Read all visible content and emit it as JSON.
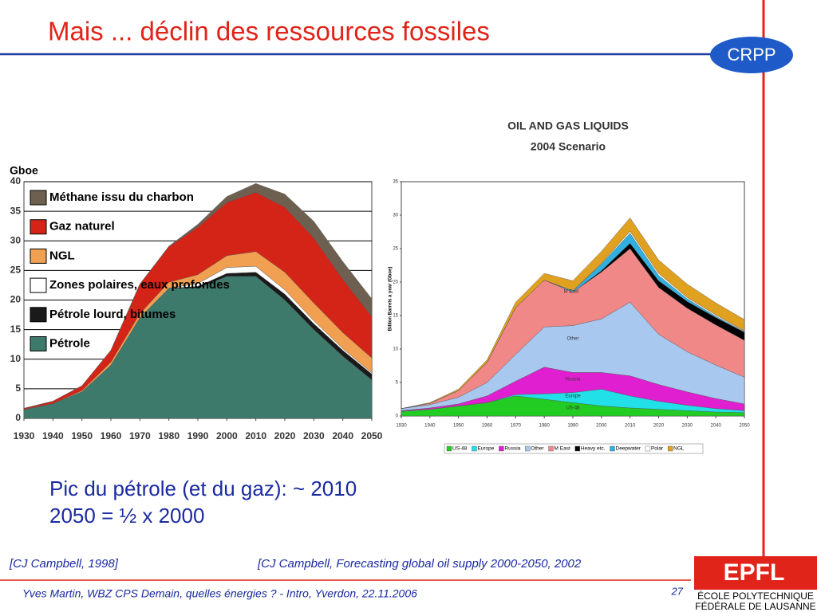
{
  "title": "Mais ... déclin des ressources fossiles",
  "logo_top": "CRPP",
  "body": [
    "Pic du pétrole (et du gaz): ~ 2010",
    "2050 = ½ x 2000"
  ],
  "citations": [
    "[CJ Campbell, 1998]",
    "[CJ Campbell, Forecasting global oil supply 2000-2050, 2002"
  ],
  "footer": "Yves Martin, WBZ CPS Demain, quelles énergies ? - Intro, Yverdon, 22.11.2006",
  "page_number": "27",
  "logo_bottom": {
    "mark": "EPFL",
    "lines": [
      "ÉCOLE POLYTECHNIQUE",
      "FÉDÉRALE DE LAUSANNE"
    ]
  },
  "chart_data": [
    {
      "type": "stacked_area",
      "y_label": "Gboe",
      "x": [
        1930,
        1940,
        1950,
        1960,
        1970,
        1980,
        1990,
        2000,
        2010,
        2020,
        2030,
        2040,
        2050
      ],
      "series": [
        {
          "name": "Pétrole",
          "color": "#3d7a6c",
          "values": [
            1.5,
            2.5,
            4.5,
            9,
            17,
            22,
            22,
            24,
            24,
            20,
            15,
            10.5,
            6.5
          ]
        },
        {
          "name": "Pétrole lourd, bitumes",
          "color": "#1a1a1a",
          "values": [
            0,
            0,
            0,
            0,
            0,
            0,
            0.3,
            0.5,
            0.7,
            1,
            1,
            1,
            1
          ]
        },
        {
          "name": "Zones polaires, eaux profondes",
          "color": "#ffffff",
          "values": [
            0,
            0,
            0,
            0,
            0,
            0,
            0.5,
            1,
            1,
            0.7,
            0.5,
            0.3,
            0.2
          ]
        },
        {
          "name": "NGL",
          "color": "#f0a050",
          "values": [
            0,
            0,
            0.2,
            0.5,
            0.7,
            1,
            1.5,
            2,
            2.5,
            3,
            3,
            2.7,
            2.5
          ]
        },
        {
          "name": "Gaz naturel",
          "color": "#d42418",
          "values": [
            0.2,
            0.4,
            0.8,
            2,
            5,
            6,
            8,
            9,
            10,
            11,
            11,
            9,
            7
          ]
        },
        {
          "name": "Méthane issu du charbon",
          "color": "#6e6050",
          "values": [
            0,
            0,
            0,
            0,
            0,
            0.1,
            0.5,
            1,
            1.5,
            2.2,
            2.8,
            3,
            3
          ]
        }
      ],
      "xlim": [
        1930,
        2050
      ],
      "ylim": [
        0,
        40
      ],
      "xticks": [
        1930,
        1940,
        1950,
        1960,
        1970,
        1980,
        1990,
        2000,
        2010,
        2020,
        2030,
        2040,
        2050
      ],
      "yticks": [
        0,
        5,
        10,
        15,
        20,
        25,
        30,
        35,
        40
      ],
      "grid": true,
      "legend": "upper left"
    },
    {
      "type": "stacked_area",
      "title": "OIL AND GAS LIQUIDS",
      "subtitle": "2004 Scenario",
      "y_label": "Billion Barrels a year (Gboe)",
      "annotations": [
        "M East",
        "Other",
        "Russia",
        "Europe",
        "US-48"
      ],
      "x": [
        1930,
        1940,
        1950,
        1960,
        1970,
        1980,
        1990,
        2000,
        2010,
        2020,
        2030,
        2040,
        2050
      ],
      "series": [
        {
          "name": "US-48",
          "color": "#22cc22",
          "values": [
            0.7,
            1,
            1.5,
            2,
            3,
            2.5,
            2,
            1.5,
            1.2,
            1,
            0.8,
            0.6,
            0.5
          ]
        },
        {
          "name": "Europe",
          "color": "#22e0e8",
          "values": [
            0,
            0,
            0,
            0,
            0.2,
            0.8,
            1.5,
            2.5,
            1.8,
            1.2,
            0.8,
            0.5,
            0.3
          ]
        },
        {
          "name": "Russia",
          "color": "#e020d0",
          "values": [
            0.1,
            0.2,
            0.3,
            1,
            2,
            4,
            3,
            2.5,
            3,
            2.5,
            2,
            1.5,
            1
          ]
        },
        {
          "name": "Other",
          "color": "#a8c8f0",
          "values": [
            0.3,
            0.5,
            1,
            2,
            4,
            6,
            7,
            8,
            11,
            7.5,
            6,
            5,
            4
          ]
        },
        {
          "name": "M East",
          "color": "#f08888",
          "values": [
            0,
            0.2,
            1,
            3,
            7,
            7,
            5,
            7,
            8,
            7,
            6.5,
            6,
            5.5
          ]
        },
        {
          "name": "Heavy etc.",
          "color": "#000000",
          "values": [
            0,
            0,
            0,
            0,
            0,
            0,
            0,
            0.2,
            0.8,
            1,
            1,
            1.1,
            1.2
          ]
        },
        {
          "name": "Deepwater",
          "color": "#30b0e0",
          "values": [
            0,
            0,
            0,
            0,
            0,
            0,
            0.2,
            1,
            1.5,
            0.8,
            0.4,
            0.2,
            0.1
          ]
        },
        {
          "name": "Polar",
          "color": "#ffffff",
          "values": [
            0,
            0,
            0,
            0,
            0,
            0,
            0,
            0.1,
            0.3,
            0.3,
            0.2,
            0.2,
            0.1
          ]
        },
        {
          "name": "NGL",
          "color": "#e0a020",
          "values": [
            0,
            0.1,
            0.2,
            0.4,
            0.8,
            1,
            1.5,
            1.8,
            2,
            2,
            2,
            1.8,
            1.7
          ]
        }
      ],
      "xlim": [
        1930,
        2050
      ],
      "ylim": [
        0,
        35
      ],
      "xticks": [
        1930,
        1940,
        1950,
        1960,
        1970,
        1980,
        1990,
        2000,
        2010,
        2020,
        2030,
        2040,
        2050
      ],
      "yticks": [
        0,
        5,
        10,
        15,
        20,
        25,
        30,
        35
      ],
      "grid": false,
      "legend": "bottom"
    }
  ]
}
